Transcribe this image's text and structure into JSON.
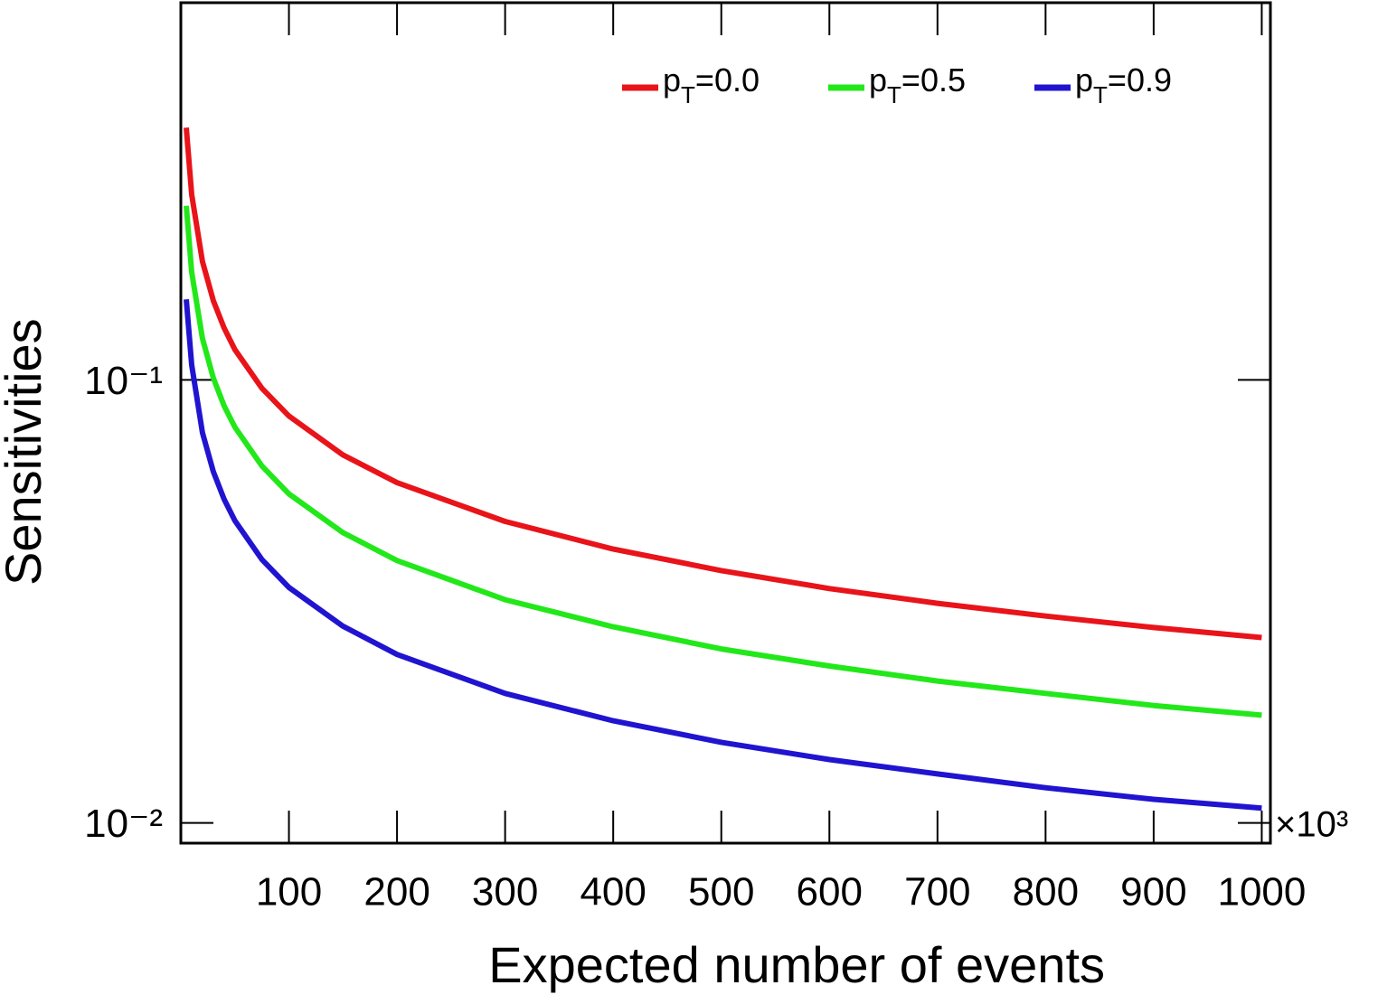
{
  "chart_data": {
    "type": "line",
    "x_label": "Expected number of events",
    "y_label": "Sensitivities",
    "x_multiplier": "×10³",
    "log_y": true,
    "legend": "top-right",
    "x": [
      5,
      10,
      20,
      30,
      40,
      50,
      75,
      100,
      150,
      200,
      300,
      400,
      500,
      600,
      700,
      800,
      900,
      1000
    ],
    "series": [
      {
        "name": "pT=0.0",
        "color": "#e8141a",
        "values": [
          0.371,
          0.262,
          0.185,
          0.151,
          0.131,
          0.117,
          0.0957,
          0.0829,
          0.0677,
          0.0586,
          0.0479,
          0.0415,
          0.0371,
          0.0338,
          0.0313,
          0.0293,
          0.0276,
          0.0262
        ]
      },
      {
        "name": "pT=0.5",
        "color": "#22e81a",
        "values": [
          0.247,
          0.175,
          0.124,
          0.101,
          0.0874,
          0.0782,
          0.0639,
          0.0553,
          0.0452,
          0.0391,
          0.0319,
          0.0277,
          0.0247,
          0.0226,
          0.0209,
          0.0196,
          0.0184,
          0.0175
        ]
      },
      {
        "name": "pT=0.9",
        "color": "#2014d0",
        "values": [
          0.152,
          0.108,
          0.076,
          0.0621,
          0.0538,
          0.0481,
          0.0393,
          0.034,
          0.0278,
          0.024,
          0.0196,
          0.017,
          0.0152,
          0.0139,
          0.0129,
          0.012,
          0.0113,
          0.0108
        ]
      }
    ],
    "xlim": [
      0,
      1008
    ],
    "xticks": [
      100,
      200,
      300,
      400,
      500,
      600,
      700,
      800,
      900,
      1000
    ],
    "ylim": [
      0.009,
      0.71
    ],
    "yticks": [
      {
        "value": 0.01,
        "label": "10⁻²"
      },
      {
        "value": 0.1,
        "label": "10⁻¹"
      }
    ],
    "grid": false
  }
}
